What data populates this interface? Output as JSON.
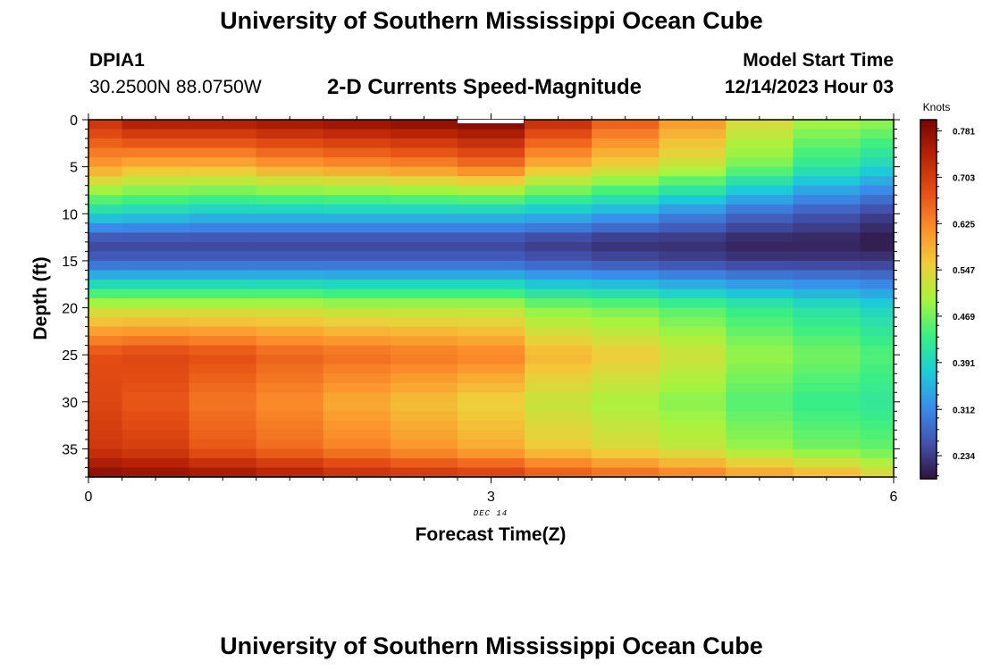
{
  "header": {
    "title": "University of Southern Mississippi Ocean Cube",
    "station_id": "DPIA1",
    "coordinates": "30.2500N  88.0750W",
    "subtitle": "2-D Currents Speed-Magnitude",
    "model_label": "Model Start Time",
    "model_time": "12/14/2023 Hour 03"
  },
  "footer": {
    "title": "University of Southern Mississippi Ocean Cube"
  },
  "chart_data": {
    "type": "heatmap",
    "title": "2-D Currents Speed-Magnitude",
    "xlabel": "Forecast Time(Z)",
    "ylabel": "Depth (ft)",
    "x_date_label": "DEC 14",
    "xlim": [
      0,
      6
    ],
    "ylim": [
      38,
      0
    ],
    "x_ticks": [
      0,
      3,
      6
    ],
    "y_ticks": [
      0,
      5,
      10,
      15,
      20,
      25,
      30,
      35
    ],
    "colorbar": {
      "label": "Knots",
      "range": [
        0.195,
        0.8
      ],
      "ticks": [
        "0.781",
        "0.703",
        "0.625",
        "0.547",
        "0.469",
        "0.391",
        "0.312",
        "0.234"
      ]
    },
    "time_steps": [
      0,
      0.5,
      1.0,
      1.5,
      2.0,
      2.5,
      3.0,
      3.5,
      4.0,
      4.5,
      5.0,
      5.5,
      6.0
    ],
    "depth_steps": [
      0,
      5,
      10,
      13,
      15,
      20,
      25,
      30,
      35,
      38
    ],
    "speed_knots": [
      [
        0.72,
        0.76,
        0.76,
        0.77,
        0.78,
        0.79,
        0.8,
        0.73,
        0.67,
        0.61,
        0.54,
        0.5,
        0.49
      ],
      [
        0.6,
        0.58,
        0.58,
        0.6,
        0.61,
        0.62,
        0.64,
        0.58,
        0.55,
        0.52,
        0.47,
        0.42,
        0.39
      ],
      [
        0.39,
        0.38,
        0.37,
        0.37,
        0.37,
        0.37,
        0.37,
        0.36,
        0.34,
        0.31,
        0.28,
        0.26,
        0.24
      ],
      [
        0.24,
        0.24,
        0.24,
        0.24,
        0.24,
        0.24,
        0.24,
        0.23,
        0.22,
        0.22,
        0.21,
        0.21,
        0.2
      ],
      [
        0.27,
        0.27,
        0.27,
        0.27,
        0.27,
        0.27,
        0.27,
        0.26,
        0.25,
        0.24,
        0.23,
        0.23,
        0.23
      ],
      [
        0.52,
        0.52,
        0.52,
        0.52,
        0.51,
        0.51,
        0.51,
        0.48,
        0.47,
        0.45,
        0.43,
        0.41,
        0.39
      ],
      [
        0.68,
        0.69,
        0.68,
        0.66,
        0.65,
        0.64,
        0.63,
        0.58,
        0.56,
        0.53,
        0.49,
        0.47,
        0.45
      ],
      [
        0.69,
        0.67,
        0.64,
        0.62,
        0.59,
        0.57,
        0.55,
        0.52,
        0.5,
        0.48,
        0.45,
        0.43,
        0.42
      ],
      [
        0.71,
        0.7,
        0.67,
        0.65,
        0.63,
        0.61,
        0.59,
        0.56,
        0.54,
        0.52,
        0.49,
        0.47,
        0.46
      ],
      [
        0.79,
        0.78,
        0.77,
        0.75,
        0.73,
        0.72,
        0.71,
        0.68,
        0.66,
        0.64,
        0.61,
        0.59,
        0.55
      ]
    ]
  }
}
